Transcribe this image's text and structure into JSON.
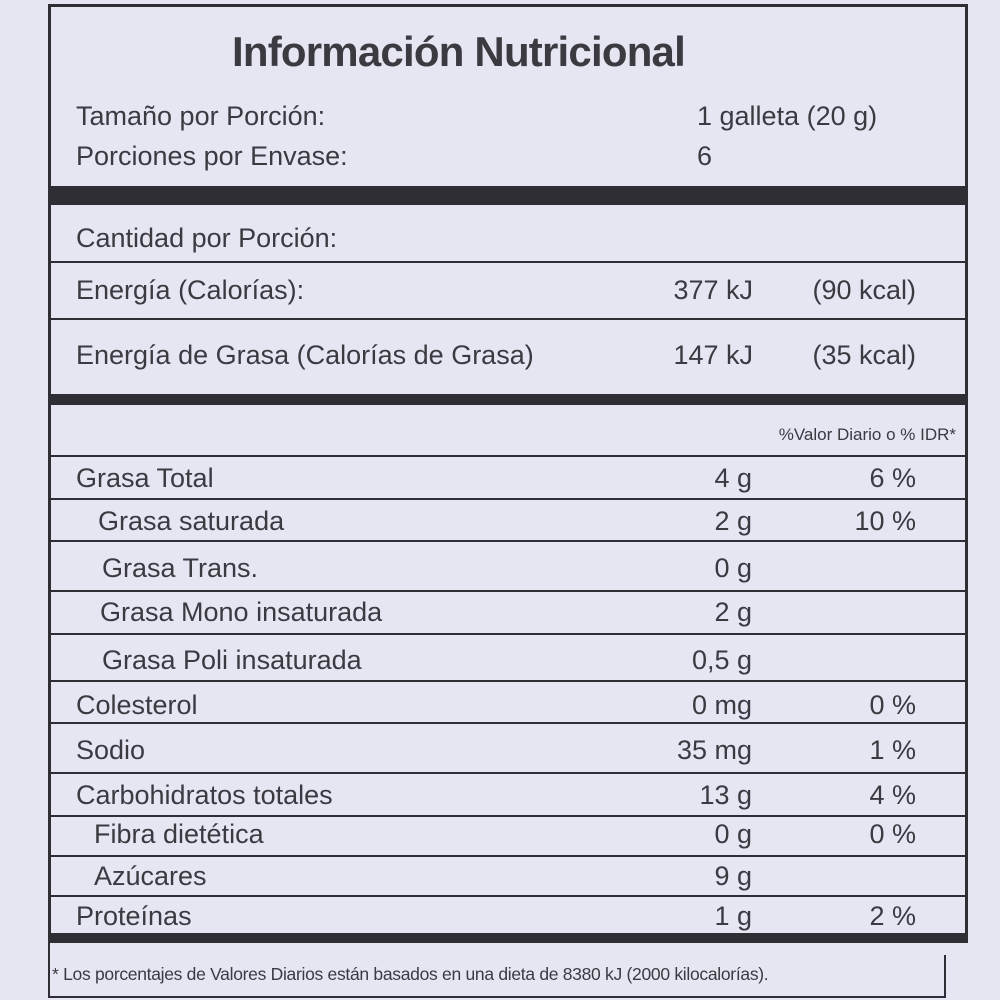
{
  "title": "Información Nutricional",
  "serving": {
    "rows": [
      [
        "Tamaño por Porción:",
        "1 galleta (20 g)"
      ],
      [
        "Porciones por Envase:",
        "6"
      ]
    ]
  },
  "amount_per_serving": {
    "label": "Cantidad por Porción:",
    "rows": [
      [
        "Energía (Calorías):",
        "377 kJ",
        "(90 kcal)"
      ],
      [
        "Energía de Grasa (Calorías de Grasa)",
        "147 kJ",
        "(35 kcal)"
      ]
    ]
  },
  "daily_value_header": "%Valor Diario o % IDR*",
  "nutrients": {
    "rows": [
      [
        "Grasa Total",
        "4 g",
        "6 %"
      ],
      [
        "Grasa saturada",
        "2 g",
        "10 %"
      ],
      [
        "Grasa Trans.",
        "0 g"
      ],
      [
        "Grasa Mono insaturada",
        "2 g"
      ],
      [
        "Grasa Poli insaturada",
        "0,5 g"
      ],
      [
        "Colesterol",
        "0 mg",
        "0 %"
      ],
      [
        "Sodio",
        "35 mg",
        "1 %"
      ],
      [
        "Carbohidratos totales",
        "13 g",
        "4 %"
      ],
      [
        "Fibra dietética",
        "0 g",
        "0 %"
      ],
      [
        "Azúcares",
        "9 g"
      ],
      [
        "Proteínas",
        "1 g",
        "2 %"
      ]
    ]
  },
  "footnote": "* Los porcentajes de Valores Diarios están basados en una dieta de 8380 kJ (2000 kilocalorías)."
}
